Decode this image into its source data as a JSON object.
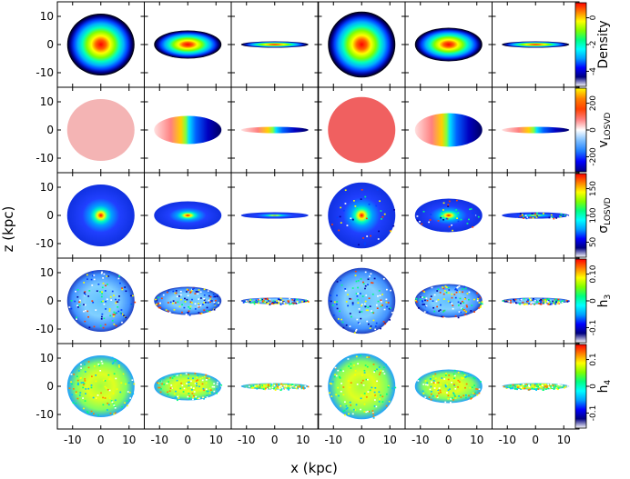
{
  "figure": {
    "x_axis_title": "x (kpc)",
    "y_axis_title": "z (kpc)",
    "x_tick_labels": [
      "-10",
      "0",
      "10"
    ],
    "y_tick_labels": [
      "10",
      "0",
      "-10"
    ]
  },
  "rows": [
    {
      "key": "density",
      "title_main": "Density",
      "title_sub": "",
      "colormap": "rainbow",
      "tick_labels": [
        "0",
        "-2",
        "-4"
      ],
      "panel_kind": "density"
    },
    {
      "key": "vlosvd",
      "title_main": "v",
      "title_sub": "LOSVD",
      "colormap": "diverging",
      "tick_labels": [
        "200",
        "0",
        "-200"
      ],
      "panel_kind": "velocity"
    },
    {
      "key": "sigma",
      "title_main": "σ",
      "title_sub": "LOSVD",
      "colormap": "rainbow",
      "tick_labels": [
        "150",
        "100",
        "50"
      ],
      "panel_kind": "dispersion"
    },
    {
      "key": "h3",
      "title_main": "h",
      "title_sub": "3",
      "colormap": "rainbow",
      "tick_labels": [
        "0.10",
        "0",
        "-0.1"
      ],
      "panel_kind": "noise"
    },
    {
      "key": "h4",
      "title_main": "h",
      "title_sub": "4",
      "colormap": "rainbow",
      "tick_labels": [
        "0.1",
        "0",
        "-0.1"
      ],
      "panel_kind": "noise2"
    }
  ],
  "columns": [
    {
      "name": "model-1-face-on",
      "inclination": "face-on",
      "aspect": 0.92
    },
    {
      "name": "model-1-edge-tilted",
      "inclination": "intermediate",
      "aspect": 0.42
    },
    {
      "name": "model-1-edge-on",
      "inclination": "edge-on",
      "aspect": 0.08
    },
    {
      "name": "model-2-face-on",
      "inclination": "face-on",
      "aspect": 0.98
    },
    {
      "name": "model-2-edge-tilted",
      "inclination": "intermediate",
      "aspect": 0.5
    },
    {
      "name": "model-2-edge-on",
      "inclination": "edge-on",
      "aspect": 0.09
    }
  ],
  "colors": {
    "rainbow": [
      "#ffffff",
      "#000080",
      "#0000ff",
      "#00a0ff",
      "#00ffff",
      "#00ff80",
      "#80ff00",
      "#ffff00",
      "#ff8000",
      "#ff0000"
    ],
    "diverging": [
      "#000080",
      "#0000ff",
      "#2080ff",
      "#80c0ff",
      "#ffffff",
      "#ff8080",
      "#ff4000",
      "#ff8000",
      "#ffff00"
    ]
  }
}
